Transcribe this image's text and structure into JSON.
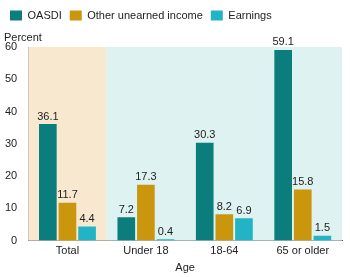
{
  "chart_data": {
    "type": "bar",
    "x_label": "Age",
    "y_label": "Percent",
    "categories": [
      "Total",
      "Under 18",
      "18-64",
      "65 or older"
    ],
    "series": [
      {
        "name": "OASDI",
        "color": "#0b7d7d",
        "values": [
          36.1,
          7.2,
          30.3,
          59.1
        ]
      },
      {
        "name": "Other unearned income",
        "color": "#c9960e",
        "values": [
          11.7,
          17.3,
          8.2,
          15.8
        ]
      },
      {
        "name": "Earnings",
        "color": "#22b4c4",
        "values": [
          4.4,
          0.4,
          6.9,
          1.5
        ]
      }
    ],
    "ylim": [
      0,
      60
    ],
    "yticks": [
      0,
      10,
      20,
      30,
      40,
      50,
      60
    ],
    "legend": "top left",
    "data_labels": true,
    "grid": false
  }
}
